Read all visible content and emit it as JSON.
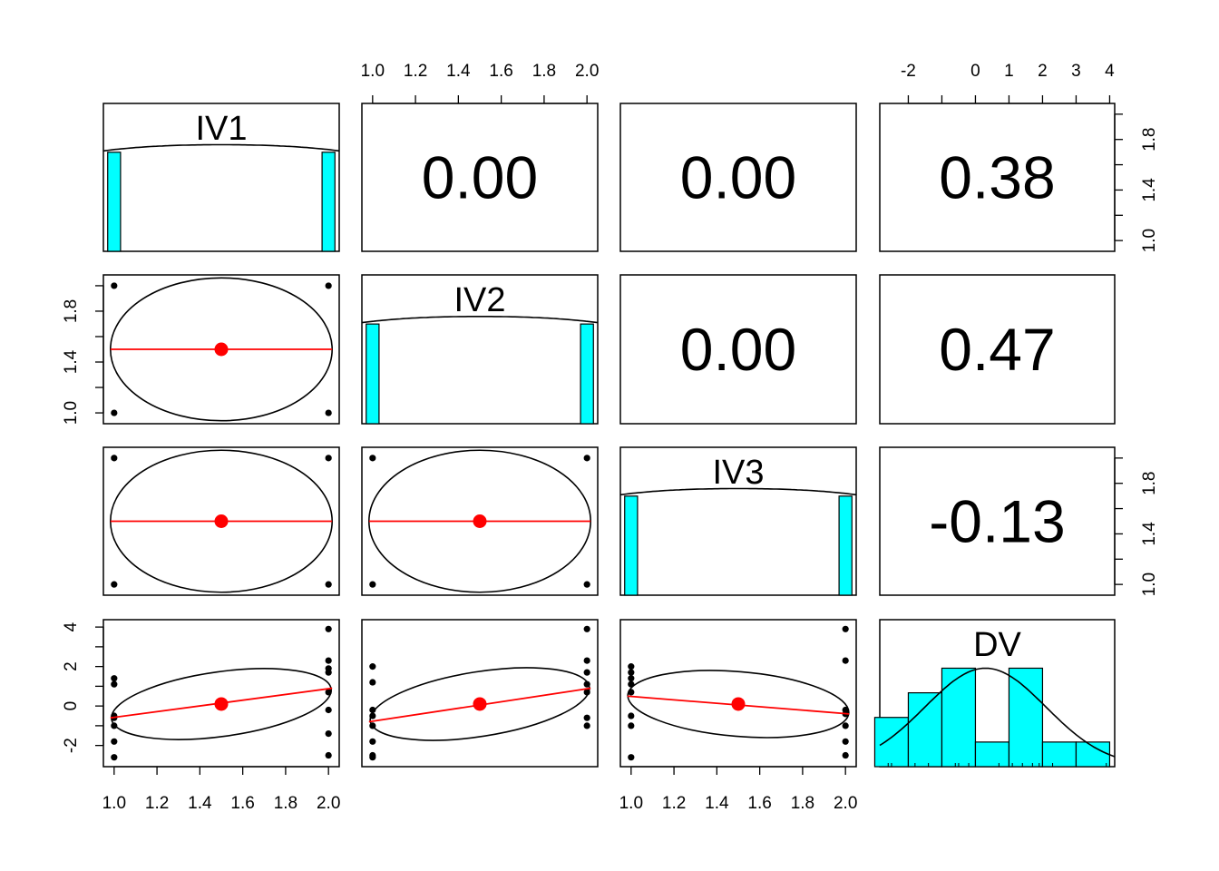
{
  "chart_data": {
    "type": "scatter-matrix",
    "variables": [
      "IV1",
      "IV2",
      "IV3",
      "DV"
    ],
    "correlations": [
      {
        "row": 0,
        "col": 1,
        "label": "0.00"
      },
      {
        "row": 0,
        "col": 2,
        "label": "0.00"
      },
      {
        "row": 0,
        "col": 3,
        "label": "0.38"
      },
      {
        "row": 1,
        "col": 2,
        "label": "0.00"
      },
      {
        "row": 1,
        "col": 3,
        "label": "0.47"
      },
      {
        "row": 2,
        "col": 3,
        "label": "-0.13"
      }
    ],
    "scatter": [
      {
        "row": 1,
        "col": 0,
        "points": [
          [
            1,
            1
          ],
          [
            1,
            2
          ],
          [
            2,
            1
          ],
          [
            2,
            2
          ]
        ],
        "mean": [
          1.5,
          1.5
        ],
        "fit": [
          [
            1,
            1.5
          ],
          [
            2,
            1.5
          ]
        ]
      },
      {
        "row": 2,
        "col": 0,
        "points": [
          [
            1,
            1
          ],
          [
            1,
            2
          ],
          [
            2,
            1
          ],
          [
            2,
            2
          ]
        ],
        "mean": [
          1.5,
          1.5
        ],
        "fit": [
          [
            1,
            1.5
          ],
          [
            2,
            1.5
          ]
        ]
      },
      {
        "row": 2,
        "col": 1,
        "points": [
          [
            1,
            1
          ],
          [
            1,
            2
          ],
          [
            2,
            1
          ],
          [
            2,
            2
          ]
        ],
        "mean": [
          1.5,
          1.5
        ],
        "fit": [
          [
            1,
            1.5
          ],
          [
            2,
            1.5
          ]
        ]
      },
      {
        "row": 3,
        "col": 0,
        "points": [
          [
            1,
            1.4
          ],
          [
            1,
            1.1
          ],
          [
            1,
            -0.5
          ],
          [
            1,
            -0.6
          ],
          [
            1,
            -1.0
          ],
          [
            1,
            -1.8
          ],
          [
            1,
            -2.6
          ],
          [
            2,
            3.9
          ],
          [
            2,
            2.3
          ],
          [
            2,
            1.9
          ],
          [
            2,
            1.7
          ],
          [
            2,
            0.7
          ],
          [
            2,
            -0.2
          ],
          [
            2,
            -1.4
          ],
          [
            2,
            -2.5
          ]
        ],
        "mean": [
          1.5,
          0.1
        ],
        "fit": [
          [
            1,
            -0.6
          ],
          [
            2,
            0.9
          ]
        ]
      },
      {
        "row": 3,
        "col": 1,
        "points": [
          [
            1,
            2.0
          ],
          [
            1,
            1.2
          ],
          [
            1,
            -0.2
          ],
          [
            1,
            -0.5
          ],
          [
            1,
            -1.0
          ],
          [
            1,
            -1.8
          ],
          [
            1,
            -2.5
          ],
          [
            1,
            -2.6
          ],
          [
            2,
            3.9
          ],
          [
            2,
            2.3
          ],
          [
            2,
            1.7
          ],
          [
            2,
            1.1
          ],
          [
            2,
            0.7
          ],
          [
            2,
            -0.6
          ],
          [
            2,
            -1.0
          ]
        ],
        "mean": [
          1.5,
          0.1
        ],
        "fit": [
          [
            1,
            -0.8
          ],
          [
            2,
            0.9
          ]
        ]
      },
      {
        "row": 3,
        "col": 2,
        "points": [
          [
            1,
            2.0
          ],
          [
            1,
            1.7
          ],
          [
            1,
            1.4
          ],
          [
            1,
            1.1
          ],
          [
            1,
            0.7
          ],
          [
            1,
            -0.5
          ],
          [
            1,
            -1.0
          ],
          [
            1,
            -2.6
          ],
          [
            2,
            3.9
          ],
          [
            2,
            2.3
          ],
          [
            2,
            -0.2
          ],
          [
            2,
            -0.4
          ],
          [
            2,
            -1.0
          ],
          [
            2,
            -1.8
          ],
          [
            2,
            -2.5
          ]
        ],
        "mean": [
          1.5,
          0.1
        ],
        "fit": [
          [
            1,
            0.5
          ],
          [
            2,
            -0.4
          ]
        ]
      }
    ],
    "histograms": [
      {
        "variable": "IV1",
        "bins": [
          [
            0.97,
            1.03,
            0.5
          ],
          [
            1.97,
            2.03,
            0.5
          ]
        ]
      },
      {
        "variable": "IV2",
        "bins": [
          [
            0.97,
            1.03,
            0.5
          ],
          [
            1.97,
            2.03,
            0.5
          ]
        ]
      },
      {
        "variable": "IV3",
        "bins": [
          [
            0.97,
            1.03,
            0.5
          ],
          [
            1.97,
            2.03,
            0.5
          ]
        ]
      },
      {
        "variable": "DV",
        "bins": [
          [
            -3,
            -2,
            2
          ],
          [
            -2,
            -1,
            3
          ],
          [
            -1,
            0,
            4
          ],
          [
            0,
            1,
            1
          ],
          [
            1,
            2,
            4
          ],
          [
            2,
            3,
            1
          ],
          [
            3,
            4,
            1
          ]
        ]
      }
    ],
    "ranges": {
      "IV1": [
        0.95,
        2.05
      ],
      "IV2": [
        0.95,
        2.05
      ],
      "IV3": [
        0.95,
        2.05
      ],
      "DV": [
        -2.85,
        4.15
      ]
    },
    "axes": {
      "top": [
        {
          "col": 1,
          "ticks": [
            "1.0",
            "1.2",
            "1.4",
            "1.6",
            "1.8",
            "2.0"
          ],
          "values": [
            1.0,
            1.2,
            1.4,
            1.6,
            1.8,
            2.0
          ]
        },
        {
          "col": 3,
          "ticks": [
            "-2",
            "0",
            "1",
            "2",
            "3",
            "4"
          ],
          "values": [
            -2,
            0,
            1,
            2,
            3,
            4
          ],
          "minor": [
            -1
          ]
        }
      ],
      "bottom": [
        {
          "col": 0,
          "ticks": [
            "1.0",
            "1.2",
            "1.4",
            "1.6",
            "1.8",
            "2.0"
          ],
          "values": [
            1.0,
            1.2,
            1.4,
            1.6,
            1.8,
            2.0
          ]
        },
        {
          "col": 2,
          "ticks": [
            "1.0",
            "1.2",
            "1.4",
            "1.6",
            "1.8",
            "2.0"
          ],
          "values": [
            1.0,
            1.2,
            1.4,
            1.6,
            1.8,
            2.0
          ]
        }
      ],
      "left": [
        {
          "row": 1,
          "ticks": [
            "1.0",
            "1.4",
            "1.8"
          ],
          "values": [
            1.0,
            1.4,
            1.8
          ],
          "minor": [
            1.2,
            1.6,
            2.0
          ]
        },
        {
          "row": 3,
          "ticks": [
            "-2",
            "0",
            "2",
            "4"
          ],
          "values": [
            -2,
            0,
            2,
            4
          ],
          "minor": [
            -1,
            1,
            3
          ]
        }
      ],
      "right": [
        {
          "row": 0,
          "ticks": [
            "1.0",
            "1.4",
            "1.8"
          ],
          "values": [
            1.0,
            1.4,
            1.8
          ],
          "minor": [
            1.2,
            1.6,
            2.0
          ]
        },
        {
          "row": 2,
          "ticks": [
            "1.0",
            "1.4",
            "1.8"
          ],
          "values": [
            1.0,
            1.4,
            1.8
          ],
          "minor": [
            1.2,
            1.6,
            2.0
          ]
        }
      ]
    },
    "colors": {
      "histogram": "#00ffff",
      "fit_line": "#ff0000",
      "mean_point": "#ff0000",
      "points": "#000000"
    }
  }
}
